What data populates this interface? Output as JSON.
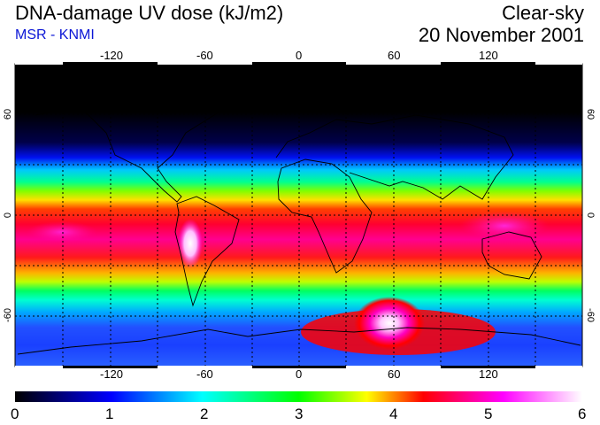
{
  "header": {
    "title": "DNA-damage UV dose (kJ/m2)",
    "subtitle": "MSR - KNMI",
    "sky_condition": "Clear-sky",
    "date": "20 November 2001"
  },
  "map": {
    "projection": "equirectangular",
    "lon_range": [
      -180,
      180
    ],
    "lat_range": [
      -90,
      90
    ],
    "grid": "dotted, every 30 degrees",
    "lon_ticks": [
      "-120",
      "-60",
      "0",
      "60",
      "120"
    ],
    "lat_ticks_left": [
      "60",
      "0",
      "-60"
    ],
    "lat_ticks_right": [
      "60",
      "0",
      "-60"
    ]
  },
  "colorbar": {
    "min": 0,
    "max": 6,
    "labels": [
      "0",
      "1",
      "2",
      "3",
      "4",
      "5",
      "6"
    ],
    "colors": [
      "#000000",
      "#0000ff",
      "#00ffff",
      "#00ff00",
      "#ffff00",
      "#ff0000",
      "#ff00ff",
      "#ffffff"
    ]
  }
}
